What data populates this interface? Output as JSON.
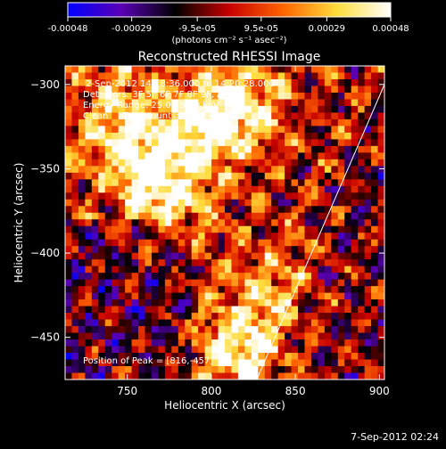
{
  "chart_data": {
    "type": "heatmap",
    "title": "Reconstructed RHESSI Image",
    "xlabel": "Heliocentric X (arcsec)",
    "ylabel": "Heliocentric Y (arcsec)",
    "xlim": [
      713,
      903
    ],
    "ylim": [
      -475,
      -289
    ],
    "x_ticks": [
      750,
      800,
      850,
      900
    ],
    "y_ticks": [
      -300,
      -350,
      -400,
      -450
    ],
    "colorbar": {
      "unit": "(photons cm⁻² s⁻¹ asec⁻²)",
      "range": [
        -0.00048,
        0.00048
      ],
      "tick_values": [
        -0.00048,
        -0.00029,
        -9.5e-05,
        9.5e-05,
        0.00029,
        0.00048
      ],
      "tick_labels": [
        "-0.00048",
        "-0.00029",
        "-9.5e-05",
        "9.5e-05",
        "0.00029",
        "0.00048"
      ],
      "colormap": [
        "#0000ff",
        "#5a00b4",
        "#000000",
        "#c80000",
        "#ff6400",
        "#ffdc3c",
        "#ffffff"
      ]
    },
    "annotations": [
      "2-Sep-2012 14:18:36.000 to 14:20:28.000",
      "Detectors: 3F 5F 6F 7F 8F 9F, Att 0",
      "Energy Range: 25.0 - 50.0 keV",
      "Clean     Total counts: 2.03E+03"
    ],
    "peak_label": "Position of Peak = [816,-457]",
    "peak": [
      816,
      -457
    ],
    "limb_line": [
      [
        827,
        -475
      ],
      [
        903,
        -300
      ]
    ],
    "image_grid": {
      "nx": 48,
      "ny": 47
    },
    "bright_sources": [
      {
        "x": 760,
        "y": -350,
        "value": 0.00042
      },
      {
        "x": 795,
        "y": -325,
        "value": 0.00044
      },
      {
        "x": 820,
        "y": -310,
        "value": 0.00036
      },
      {
        "x": 745,
        "y": -315,
        "value": 0.00034
      },
      {
        "x": 818,
        "y": -457,
        "value": 0.00048
      },
      {
        "x": 780,
        "y": -370,
        "value": 0.00026
      },
      {
        "x": 840,
        "y": -420,
        "value": 0.00024
      }
    ],
    "grid": false
  },
  "footer": "7-Sep-2012 02:24"
}
